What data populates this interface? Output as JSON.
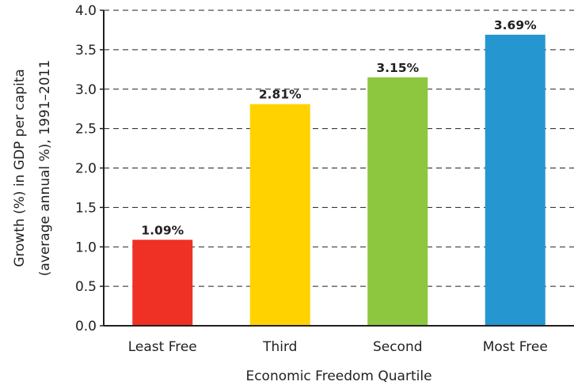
{
  "chart_data": {
    "type": "bar",
    "categories": [
      "Least Free",
      "Third",
      "Second",
      "Most Free"
    ],
    "values": [
      1.09,
      2.81,
      3.15,
      3.69
    ],
    "value_labels": [
      "1.09%",
      "2.81%",
      "3.15%",
      "3.69%"
    ],
    "colors": [
      "#ee3124",
      "#ffd200",
      "#8dc63f",
      "#2596cf"
    ],
    "xlabel": "Economic Freedom Quartile",
    "ylabel_line1": "Growth (%) in GDP per capita",
    "ylabel_line2": "(average annual %), 1991–2011",
    "ylim": [
      0,
      4.0
    ],
    "yticks": [
      "0.0",
      "0.5",
      "1.0",
      "1.5",
      "2.0",
      "2.5",
      "3.0",
      "3.5",
      "4.0"
    ],
    "grid": "dashed horizontal",
    "legend": "none"
  }
}
